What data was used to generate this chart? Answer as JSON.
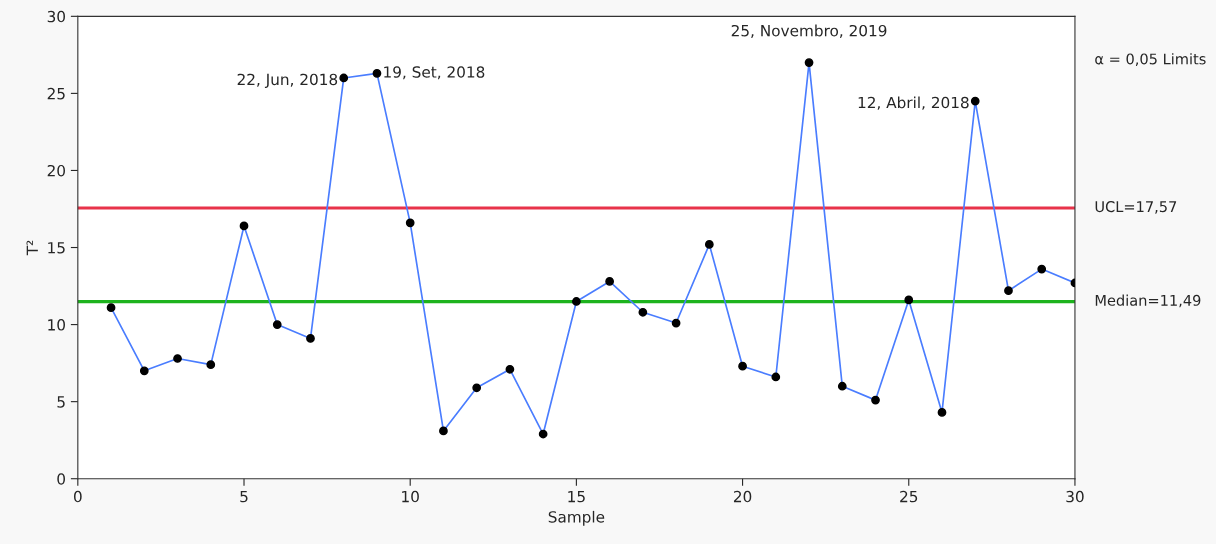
{
  "chart_data": {
    "type": "line",
    "xlabel": "Sample",
    "ylabel": "T²",
    "x": [
      1,
      2,
      3,
      4,
      5,
      6,
      7,
      8,
      9,
      10,
      11,
      12,
      13,
      14,
      15,
      16,
      17,
      18,
      19,
      20,
      21,
      22,
      23,
      24,
      25,
      26,
      27,
      28,
      29,
      30
    ],
    "series": [
      {
        "color": "#4a7dff",
        "values": [
          11.1,
          7.0,
          7.8,
          7.4,
          16.4,
          10.0,
          9.1,
          26.0,
          26.3,
          16.6,
          3.1,
          5.9,
          7.1,
          2.9,
          11.5,
          12.8,
          10.8,
          10.1,
          15.2,
          7.3,
          6.6,
          27.0,
          6.0,
          5.1,
          11.6,
          4.3,
          24.5,
          12.2,
          13.6,
          12.7
        ]
      }
    ],
    "marker": "circle",
    "xlim": [
      0,
      30
    ],
    "xticks": [
      0,
      5,
      10,
      15,
      20,
      25,
      30
    ],
    "ylim": [
      0,
      30
    ],
    "yticks": [
      0,
      5,
      10,
      15,
      20,
      25,
      30
    ],
    "ref_lines": [
      {
        "axis": "y",
        "value": 17.57,
        "label": "UCL=17,57",
        "color": "#e8334a"
      },
      {
        "axis": "y",
        "value": 11.49,
        "label": "Median=11,49",
        "color": "#1db31d"
      }
    ],
    "annotations": [
      {
        "text": "22, Jun, 2018",
        "x": 8,
        "y": 26.0
      },
      {
        "text": "19, Set, 2018",
        "x": 9,
        "y": 26.3
      },
      {
        "text": "25, Novembro, 2019",
        "x": 22,
        "y": 27.0
      },
      {
        "text": "12, Abril, 2018",
        "x": 27,
        "y": 24.5
      },
      "α = 0,05 Limits"
    ],
    "grid": false,
    "legend": false
  }
}
